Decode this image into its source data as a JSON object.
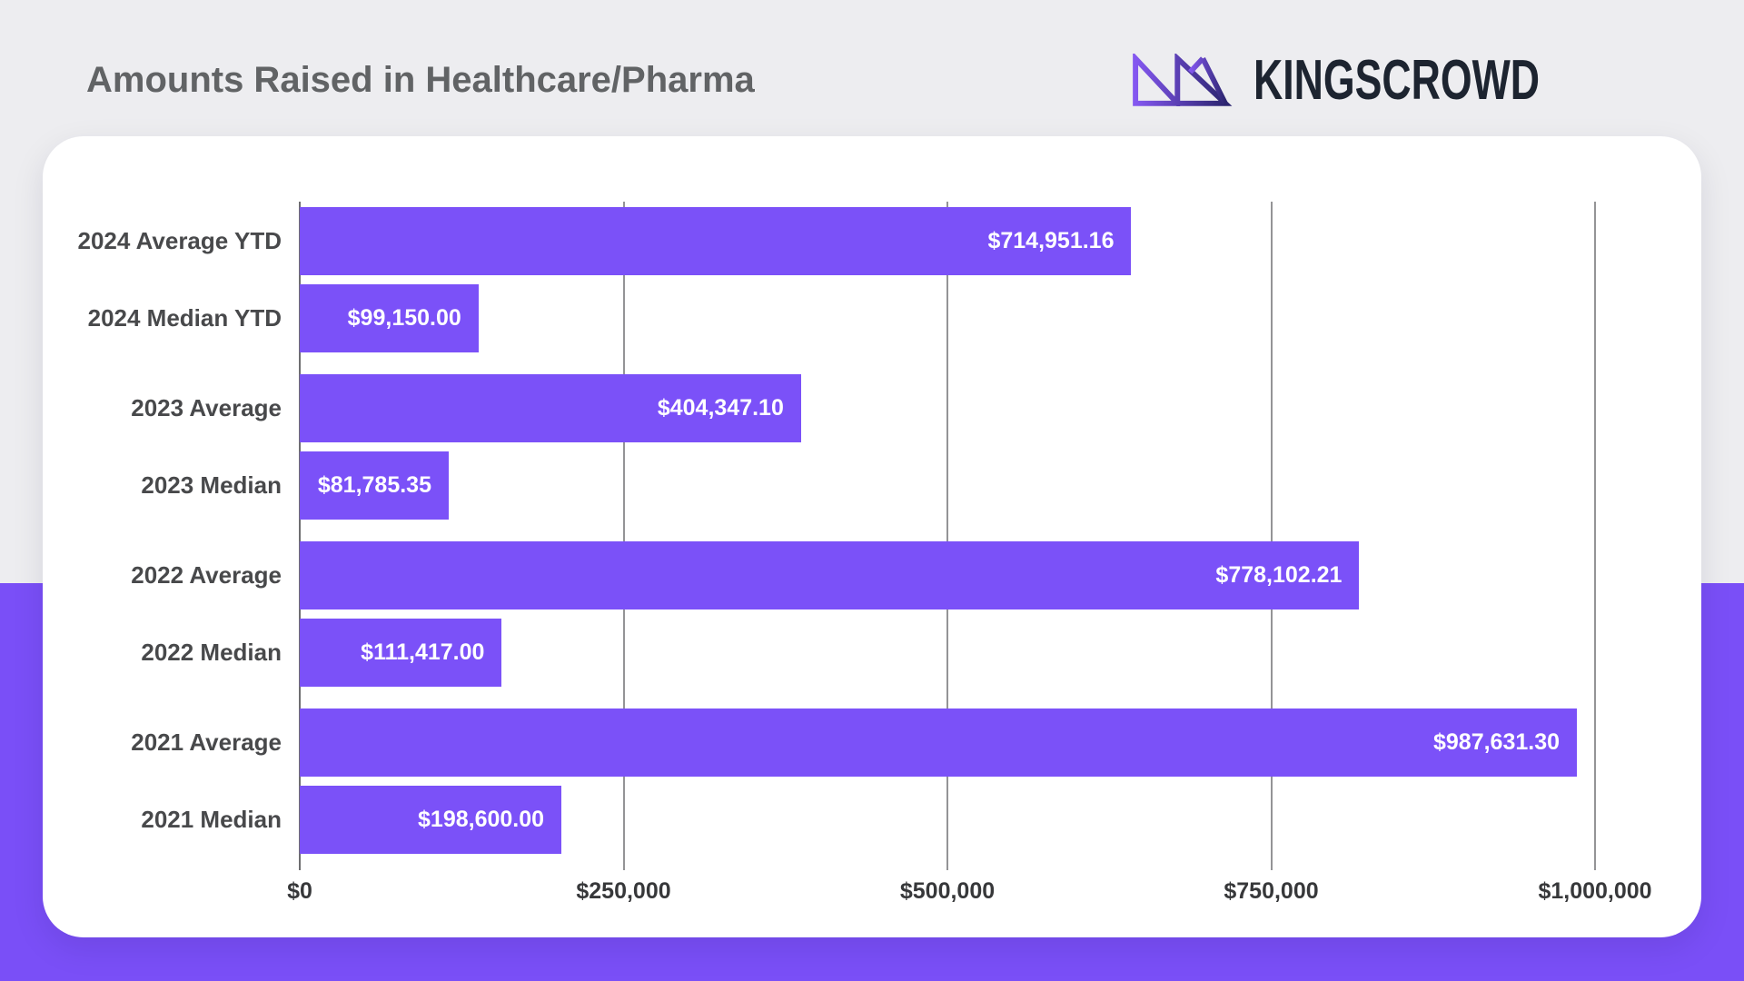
{
  "header": {
    "title": "Amounts Raised in Healthcare/Pharma",
    "brand": "KINGSCROWD"
  },
  "chart_data": {
    "type": "bar",
    "orientation": "horizontal",
    "title": "Amounts Raised in Healthcare/Pharma",
    "grid": true,
    "legend": false,
    "bar_color": "#7b51f8",
    "categories": [
      "2024 Average YTD",
      "2024 Median YTD",
      "2023 Average",
      "2023 Median",
      "2022 Average",
      "2022 Median",
      "2021 Average",
      "2021 Median"
    ],
    "bars": [
      {
        "label": "2024 Average YTD",
        "value": 714951.16,
        "value_label": "$714,951.16",
        "display_pct": 64.2,
        "new_group": false
      },
      {
        "label": "2024 Median YTD",
        "value": 99150.0,
        "value_label": "$99,150.00",
        "display_pct": 13.8,
        "new_group": false
      },
      {
        "label": "2023 Average",
        "value": 404347.1,
        "value_label": "$404,347.10",
        "display_pct": 38.7,
        "new_group": true
      },
      {
        "label": "2023 Median",
        "value": 81785.35,
        "value_label": "$81,785.35",
        "display_pct": 11.5,
        "new_group": false
      },
      {
        "label": "2022 Average",
        "value": 778102.21,
        "value_label": "$778,102.21",
        "display_pct": 81.8,
        "new_group": true
      },
      {
        "label": "2022 Median",
        "value": 111417.0,
        "value_label": "$111,417.00",
        "display_pct": 15.6,
        "new_group": false
      },
      {
        "label": "2021 Average",
        "value": 987631.3,
        "value_label": "$987,631.30",
        "display_pct": 98.6,
        "new_group": true
      },
      {
        "label": "2021 Median",
        "value": 198600.0,
        "value_label": "$198,600.00",
        "display_pct": 20.2,
        "new_group": false
      }
    ],
    "x_axis": {
      "ticks": [
        "$0",
        "$250,000",
        "$500,000",
        "$750,000",
        "$1,000,000"
      ],
      "tick_values": [
        0,
        250000,
        500000,
        750000,
        1000000
      ],
      "min": 0,
      "max": 1000000
    }
  },
  "colors": {
    "bar": "#7b51f8",
    "band": "#7a4ff7",
    "background": "#ededf0",
    "card": "#ffffff",
    "title_text": "#616365",
    "category_text": "#48494b",
    "tick_text": "#37383a",
    "gridline": "#949496",
    "brand_text": "#1d2430",
    "logo_gradient_start": "#8457f0",
    "logo_gradient_end": "#2c2570"
  }
}
